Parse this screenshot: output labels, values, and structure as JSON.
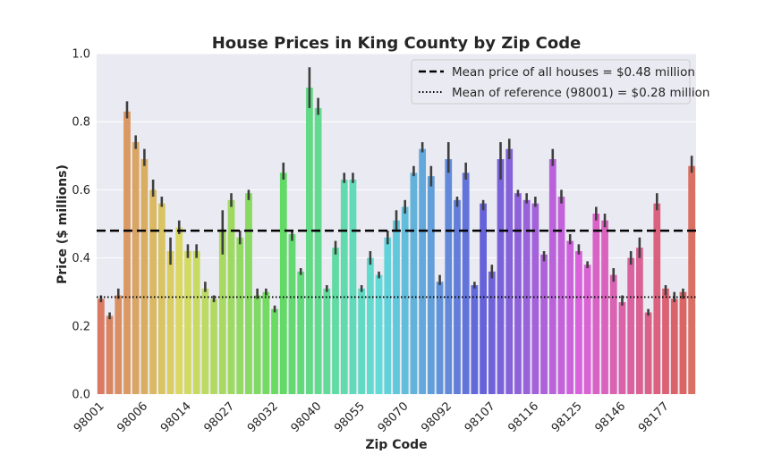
{
  "chart_data": {
    "type": "bar",
    "title": "House Prices in King County by Zip Code",
    "xlabel": "Zip Code",
    "ylabel": "Price ($ millions)",
    "ylim": [
      0,
      1.0
    ],
    "yticks": [
      0.0,
      0.2,
      0.4,
      0.6,
      0.8,
      1.0
    ],
    "ytick_labels": [
      "0.0",
      "0.2",
      "0.4",
      "0.6",
      "0.8",
      "1.0"
    ],
    "grid": true,
    "legend_placement": "top-right",
    "xtick_labels": [
      {
        "index": 0,
        "label": "98001"
      },
      {
        "index": 5,
        "label": "98006"
      },
      {
        "index": 10,
        "label": "98014"
      },
      {
        "index": 15,
        "label": "98027"
      },
      {
        "index": 20,
        "label": "98032"
      },
      {
        "index": 25,
        "label": "98040"
      },
      {
        "index": 30,
        "label": "98055"
      },
      {
        "index": 35,
        "label": "98070"
      },
      {
        "index": 40,
        "label": "98092"
      },
      {
        "index": 45,
        "label": "98107"
      },
      {
        "index": 50,
        "label": "98116"
      },
      {
        "index": 55,
        "label": "98125"
      },
      {
        "index": 60,
        "label": "98146"
      },
      {
        "index": 65,
        "label": "98177"
      }
    ],
    "values": [
      0.28,
      0.23,
      0.29,
      0.83,
      0.74,
      0.69,
      0.6,
      0.56,
      0.42,
      0.49,
      0.42,
      0.42,
      0.31,
      0.28,
      0.48,
      0.57,
      0.46,
      0.59,
      0.29,
      0.3,
      0.25,
      0.65,
      0.47,
      0.36,
      0.9,
      0.84,
      0.31,
      0.43,
      0.63,
      0.63,
      0.31,
      0.4,
      0.35,
      0.46,
      0.51,
      0.55,
      0.65,
      0.72,
      0.64,
      0.33,
      0.69,
      0.57,
      0.65,
      0.32,
      0.56,
      0.36,
      0.69,
      0.72,
      0.59,
      0.57,
      0.56,
      0.41,
      0.69,
      0.58,
      0.45,
      0.42,
      0.38,
      0.53,
      0.51,
      0.35,
      0.27,
      0.4,
      0.43,
      0.24,
      0.56,
      0.31,
      0.28,
      0.3,
      0.67
    ],
    "error_low": [
      0.27,
      0.22,
      0.28,
      0.81,
      0.72,
      0.67,
      0.58,
      0.55,
      0.38,
      0.47,
      0.4,
      0.4,
      0.3,
      0.27,
      0.41,
      0.55,
      0.44,
      0.57,
      0.28,
      0.29,
      0.24,
      0.63,
      0.45,
      0.35,
      0.84,
      0.82,
      0.3,
      0.41,
      0.62,
      0.62,
      0.3,
      0.38,
      0.34,
      0.44,
      0.48,
      0.53,
      0.64,
      0.71,
      0.61,
      0.32,
      0.65,
      0.55,
      0.63,
      0.31,
      0.54,
      0.34,
      0.63,
      0.69,
      0.58,
      0.56,
      0.55,
      0.39,
      0.67,
      0.56,
      0.44,
      0.41,
      0.37,
      0.51,
      0.49,
      0.33,
      0.26,
      0.38,
      0.4,
      0.23,
      0.54,
      0.29,
      0.27,
      0.28,
      0.65
    ],
    "error_high": [
      0.29,
      0.24,
      0.31,
      0.86,
      0.76,
      0.72,
      0.63,
      0.58,
      0.46,
      0.51,
      0.44,
      0.44,
      0.33,
      0.29,
      0.54,
      0.59,
      0.48,
      0.6,
      0.31,
      0.31,
      0.26,
      0.68,
      0.48,
      0.37,
      0.96,
      0.87,
      0.32,
      0.45,
      0.65,
      0.65,
      0.32,
      0.42,
      0.36,
      0.48,
      0.54,
      0.57,
      0.67,
      0.74,
      0.67,
      0.35,
      0.74,
      0.58,
      0.68,
      0.33,
      0.57,
      0.38,
      0.74,
      0.75,
      0.6,
      0.59,
      0.58,
      0.42,
      0.72,
      0.6,
      0.47,
      0.44,
      0.39,
      0.55,
      0.53,
      0.37,
      0.29,
      0.42,
      0.46,
      0.25,
      0.59,
      0.32,
      0.3,
      0.31,
      0.7
    ],
    "reference_lines": [
      {
        "label": "Mean price of all houses = $0.48 million",
        "value": 0.48,
        "style": "dashed",
        "color": "#000000"
      },
      {
        "label": "Mean of reference (98001) = $0.28 million",
        "value": 0.285,
        "style": "dotted",
        "color": "#000000"
      }
    ],
    "colors": {
      "background": "#eaeaf2",
      "grid": "#ffffff",
      "error_bar": "#3f3f3f",
      "palette": "husl"
    }
  }
}
